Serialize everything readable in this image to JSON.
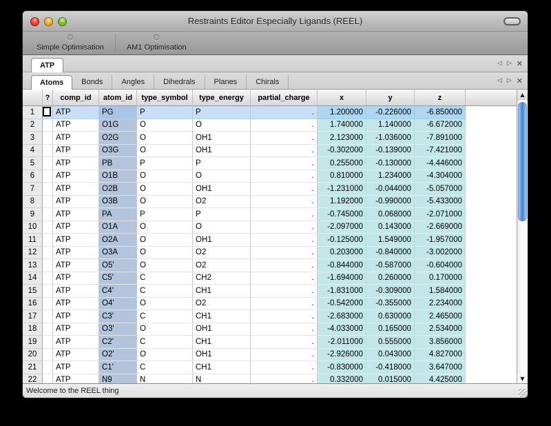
{
  "window": {
    "title": "Restraints Editor Especially Ligands (REEL)"
  },
  "toolbar": {
    "buttons": [
      {
        "label": "Simple Optimisation",
        "icon": "gear"
      },
      {
        "label": "AM1 Optimisation",
        "icon": "gear"
      }
    ]
  },
  "doc_tabs": {
    "tabs": [
      {
        "label": "ATP",
        "selected": true
      }
    ],
    "controls": {
      "prev_icon": "◁",
      "next_icon": "▷",
      "close_icon": "✕"
    }
  },
  "section_tabs": {
    "tabs": [
      {
        "label": "Atoms",
        "selected": true
      },
      {
        "label": "Bonds"
      },
      {
        "label": "Angles"
      },
      {
        "label": "Dihedrals"
      },
      {
        "label": "Planes"
      },
      {
        "label": "Chirals"
      }
    ],
    "controls": {
      "prev_icon": "◁",
      "next_icon": "▷",
      "close_icon": "✕"
    }
  },
  "table": {
    "columns": [
      "?",
      "comp_id",
      "atom_id",
      "type_symbol",
      "type_energy",
      "partial_charge",
      "x",
      "y",
      "z"
    ],
    "selected_row": 1,
    "rows": [
      {
        "num": 1,
        "comp_id": "ATP",
        "atom_id": "PG",
        "type_symbol": "P",
        "type_energy": "P",
        "partial_charge": ".",
        "x": "1.200000",
        "y": "-0.226000",
        "z": "-6.850000"
      },
      {
        "num": 2,
        "comp_id": "ATP",
        "atom_id": "O1G",
        "type_symbol": "O",
        "type_energy": "O",
        "partial_charge": ".",
        "x": "1.740000",
        "y": "1.140000",
        "z": "-6.672000"
      },
      {
        "num": 3,
        "comp_id": "ATP",
        "atom_id": "O2G",
        "type_symbol": "O",
        "type_energy": "OH1",
        "partial_charge": ".",
        "x": "2.123000",
        "y": "-1.036000",
        "z": "-7.891000"
      },
      {
        "num": 4,
        "comp_id": "ATP",
        "atom_id": "O3G",
        "type_symbol": "O",
        "type_energy": "OH1",
        "partial_charge": ".",
        "x": "-0.302000",
        "y": "-0.139000",
        "z": "-7.421000"
      },
      {
        "num": 5,
        "comp_id": "ATP",
        "atom_id": "PB",
        "type_symbol": "P",
        "type_energy": "P",
        "partial_charge": ".",
        "x": "0.255000",
        "y": "-0.130000",
        "z": "-4.446000"
      },
      {
        "num": 6,
        "comp_id": "ATP",
        "atom_id": "O1B",
        "type_symbol": "O",
        "type_energy": "O",
        "partial_charge": ".",
        "x": "0.810000",
        "y": "1.234000",
        "z": "-4.304000"
      },
      {
        "num": 7,
        "comp_id": "ATP",
        "atom_id": "O2B",
        "type_symbol": "O",
        "type_energy": "OH1",
        "partial_charge": ".",
        "x": "-1.231000",
        "y": "-0.044000",
        "z": "-5.057000"
      },
      {
        "num": 8,
        "comp_id": "ATP",
        "atom_id": "O3B",
        "type_symbol": "O",
        "type_energy": "O2",
        "partial_charge": ".",
        "x": "1.192000",
        "y": "-0.990000",
        "z": "-5.433000"
      },
      {
        "num": 9,
        "comp_id": "ATP",
        "atom_id": "PA",
        "type_symbol": "P",
        "type_energy": "P",
        "partial_charge": ".",
        "x": "-0.745000",
        "y": "0.068000",
        "z": "-2.071000"
      },
      {
        "num": 10,
        "comp_id": "ATP",
        "atom_id": "O1A",
        "type_symbol": "O",
        "type_energy": "O",
        "partial_charge": ".",
        "x": "-2.097000",
        "y": "0.143000",
        "z": "-2.669000"
      },
      {
        "num": 11,
        "comp_id": "ATP",
        "atom_id": "O2A",
        "type_symbol": "O",
        "type_energy": "OH1",
        "partial_charge": ".",
        "x": "-0.125000",
        "y": "1.549000",
        "z": "-1.957000"
      },
      {
        "num": 12,
        "comp_id": "ATP",
        "atom_id": "O3A",
        "type_symbol": "O",
        "type_energy": "O2",
        "partial_charge": ".",
        "x": "0.203000",
        "y": "-0.840000",
        "z": "-3.002000"
      },
      {
        "num": 13,
        "comp_id": "ATP",
        "atom_id": "O5'",
        "type_symbol": "O",
        "type_energy": "O2",
        "partial_charge": ".",
        "x": "-0.844000",
        "y": "-0.587000",
        "z": "-0.604000"
      },
      {
        "num": 14,
        "comp_id": "ATP",
        "atom_id": "C5'",
        "type_symbol": "C",
        "type_energy": "CH2",
        "partial_charge": ".",
        "x": "-1.694000",
        "y": "0.260000",
        "z": "0.170000"
      },
      {
        "num": 15,
        "comp_id": "ATP",
        "atom_id": "C4'",
        "type_symbol": "C",
        "type_energy": "CH1",
        "partial_charge": ".",
        "x": "-1.831000",
        "y": "-0.309000",
        "z": "1.584000"
      },
      {
        "num": 16,
        "comp_id": "ATP",
        "atom_id": "O4'",
        "type_symbol": "O",
        "type_energy": "O2",
        "partial_charge": ".",
        "x": "-0.542000",
        "y": "-0.355000",
        "z": "2.234000"
      },
      {
        "num": 17,
        "comp_id": "ATP",
        "atom_id": "C3'",
        "type_symbol": "C",
        "type_energy": "CH1",
        "partial_charge": ".",
        "x": "-2.683000",
        "y": "0.630000",
        "z": "2.465000"
      },
      {
        "num": 18,
        "comp_id": "ATP",
        "atom_id": "O3'",
        "type_symbol": "O",
        "type_energy": "OH1",
        "partial_charge": ".",
        "x": "-4.033000",
        "y": "0.165000",
        "z": "2.534000"
      },
      {
        "num": 19,
        "comp_id": "ATP",
        "atom_id": "C2'",
        "type_symbol": "C",
        "type_energy": "CH1",
        "partial_charge": ".",
        "x": "-2.011000",
        "y": "0.555000",
        "z": "3.856000"
      },
      {
        "num": 20,
        "comp_id": "ATP",
        "atom_id": "O2'",
        "type_symbol": "O",
        "type_energy": "OH1",
        "partial_charge": ".",
        "x": "-2.926000",
        "y": "0.043000",
        "z": "4.827000"
      },
      {
        "num": 21,
        "comp_id": "ATP",
        "atom_id": "C1'",
        "type_symbol": "C",
        "type_energy": "CH1",
        "partial_charge": ".",
        "x": "-0.830000",
        "y": "-0.418000",
        "z": "3.647000"
      },
      {
        "num": 22,
        "comp_id": "ATP",
        "atom_id": "N9",
        "type_symbol": "N",
        "type_energy": "N",
        "partial_charge": ".",
        "x": "0.332000",
        "y": "0.015000",
        "z": "4.425000"
      }
    ]
  },
  "status_bar": {
    "message": "Welcome to the REEL thing"
  },
  "colors": {
    "selected_row": "#c9def7",
    "atom_id_column": "#b2c5dd",
    "xyz_columns": "#c3e7e8",
    "scroll_thumb": "#3f7fd4"
  }
}
